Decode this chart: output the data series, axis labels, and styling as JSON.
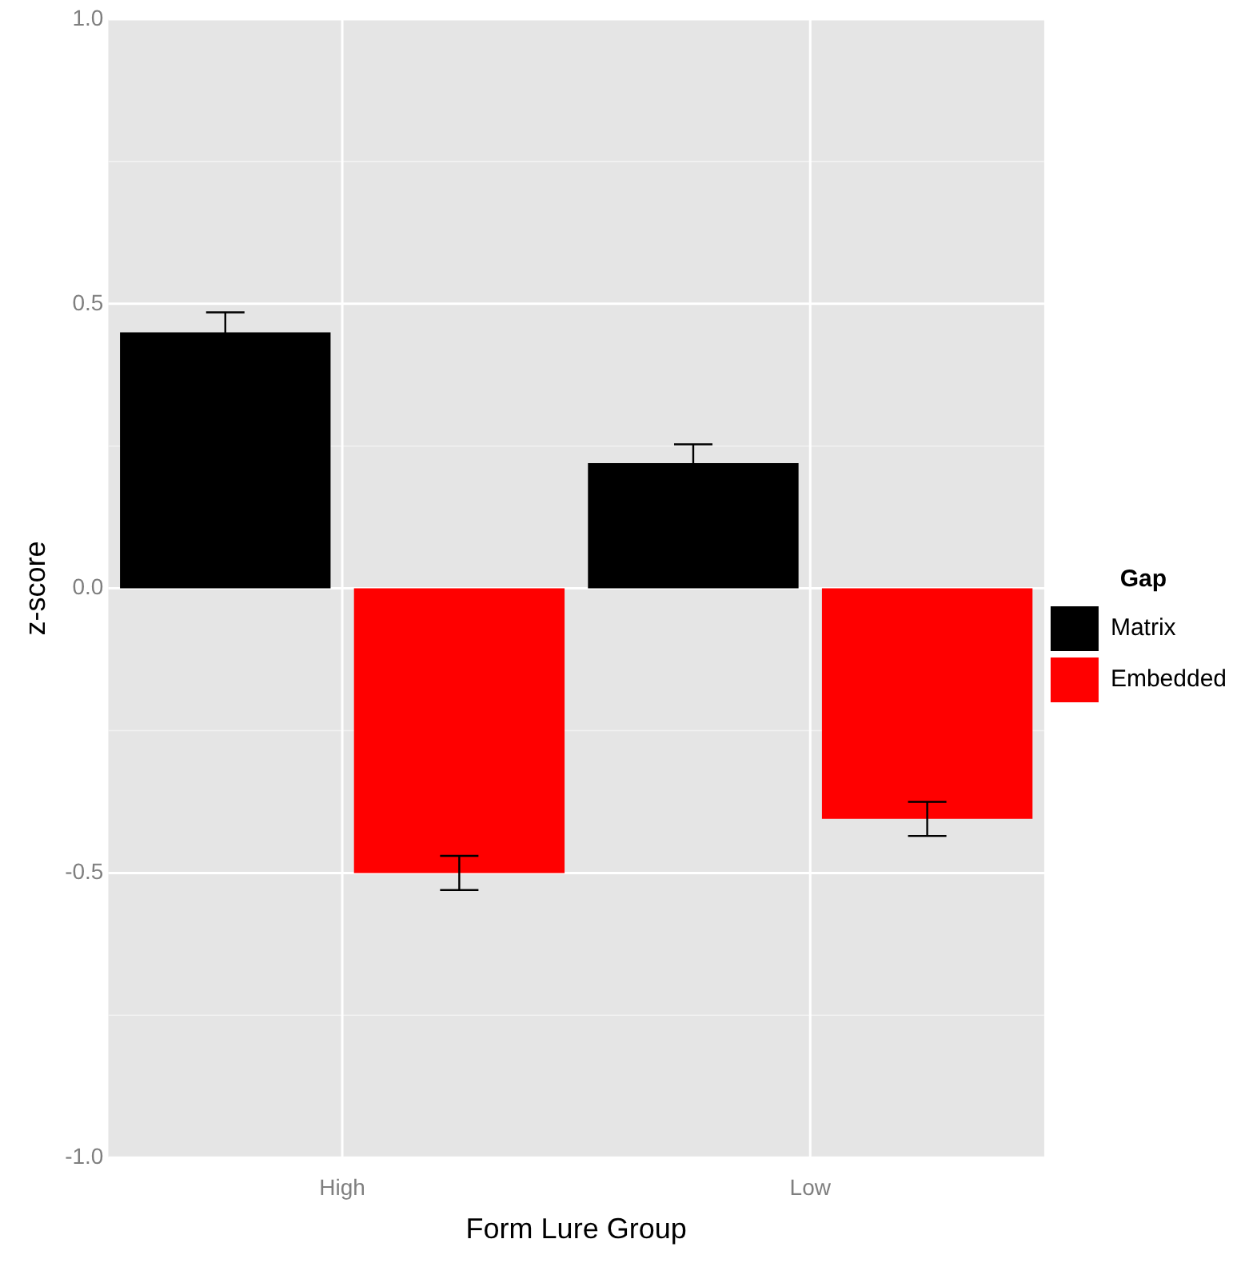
{
  "chart_data": {
    "type": "bar",
    "xlabel": "Form Lure Group",
    "ylabel": "z-score",
    "legend_title": "Gap",
    "categories": [
      "High",
      "Low"
    ],
    "series": [
      {
        "name": "Matrix",
        "color": "#000000",
        "values": [
          0.45,
          0.22
        ],
        "errors": [
          0.035,
          0.033
        ]
      },
      {
        "name": "Embedded",
        "color": "#ff0000",
        "values": [
          -0.5,
          -0.405
        ],
        "errors": [
          0.03,
          0.03
        ]
      }
    ],
    "ylim": [
      -1,
      1
    ],
    "yticks": [
      {
        "value": -1,
        "label": "-1.0"
      },
      {
        "value": -0.75,
        "label": null
      },
      {
        "value": -0.5,
        "label": "-0.5"
      },
      {
        "value": -0.25,
        "label": null
      },
      {
        "value": 0,
        "label": "0.0"
      },
      {
        "value": 0.25,
        "label": null
      },
      {
        "value": 0.5,
        "label": "0.5"
      },
      {
        "value": 0.75,
        "label": null
      },
      {
        "value": 1,
        "label": "1.0"
      }
    ],
    "grid": true,
    "legend": "right"
  }
}
